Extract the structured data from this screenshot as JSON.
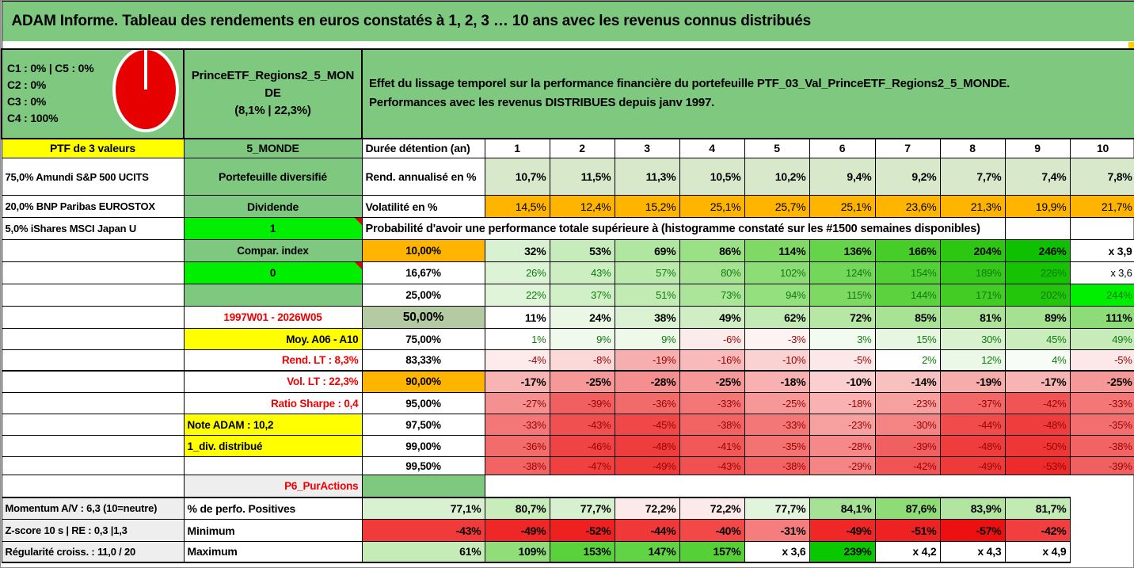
{
  "title": "ADAM Informe. Tableau des rendements en euros constatés à 1, 2, 3 … 10 ans avec les revenus connus distribués",
  "palette": {
    "header_green": "#7fc87f",
    "cell_green": "#7fc87f",
    "bright_green": "#00ef00",
    "orange": "#ffb400",
    "yellow": "#ffff00",
    "gray_label": "#eeeeee",
    "muted_green": "#b4caa2",
    "rend_green": "#d7e9ca",
    "label_red": "#f00000",
    "positive_text": "#0e7a0e",
    "negative_text": "#9b0000",
    "pie_red": "#e60000",
    "strip_nub": "#ffcc00"
  },
  "header": {
    "allocations": [
      "C1 : 0% | C5 : 0%",
      "C2 : 0%",
      "C3 : 0%",
      "C4 : 100%"
    ],
    "pie_icon": "allocation-pie-100pct-red",
    "portfolio_name": "PrinceETF_Regions2_5_MONDE",
    "portfolio_stats": "(8,1% | 22,3%)",
    "description_line1": "Effet du lissage temporel sur la performance financière du portefeuille PTF_03_Val_PrinceETF_Regions2_5_MONDE.",
    "description_line2": "Performances avec les revenus DISTRIBUES depuis janv 1997."
  },
  "years_row": {
    "a": "PTF de 3 valeurs",
    "b": "5_MONDE",
    "c": "Durée détention (an)",
    "years": [
      "1",
      "2",
      "3",
      "4",
      "5",
      "6",
      "7",
      "8",
      "9",
      "10"
    ]
  },
  "rend_row": {
    "a": "75,0% Amundi S&P 500 UCITS",
    "b": "Portefeuille diversifié",
    "c": "Rend. annualisé en %",
    "bg": "#d7e9ca",
    "values": [
      "10,7%",
      "11,5%",
      "11,3%",
      "10,5%",
      "10,2%",
      "9,4%",
      "9,2%",
      "7,7%",
      "7,4%",
      "7,8%"
    ]
  },
  "vol_row": {
    "a": "20,0% BNP Paribas EUROSTOX",
    "b": "Dividende",
    "c": "Volatilité en %",
    "bg": "#ffb400",
    "values": [
      "14,5%",
      "12,4%",
      "15,2%",
      "25,1%",
      "25,7%",
      "25,1%",
      "23,6%",
      "21,3%",
      "19,9%",
      "21,7%"
    ]
  },
  "prob_header_row": {
    "a": "5,0% iShares MSCI Japan U",
    "b": "1",
    "b_bg": "#00ef00",
    "text": "Probabilité d'avoir une performance totale supérieure à (histogramme constaté sur les #1500 semaines disponibles)"
  },
  "prob_rows": [
    {
      "b": {
        "t": "Compar. index",
        "bg": "#7fc87f",
        "align": "c"
      },
      "c": {
        "t": "10,00%",
        "bg": "#ffb400"
      },
      "bold": true,
      "sep": false,
      "cells": [
        {
          "t": "32%",
          "bg": "#d8f1d0"
        },
        {
          "t": "53%",
          "bg": "#c5ecba"
        },
        {
          "t": "69%",
          "bg": "#b0e7a0"
        },
        {
          "t": "86%",
          "bg": "#9ae186"
        },
        {
          "t": "114%",
          "bg": "#7eda65"
        },
        {
          "t": "136%",
          "bg": "#65d449"
        },
        {
          "t": "166%",
          "bg": "#47cd28"
        },
        {
          "t": "204%",
          "bg": "#2cc711"
        },
        {
          "t": "246%",
          "bg": "#0ec100"
        },
        {
          "t": "x 3,9",
          "bg": "#ffffff"
        }
      ]
    },
    {
      "b": {
        "t": "0",
        "bg": "#00ef00",
        "align": "c",
        "bold": true,
        "triangle": true
      },
      "c": {
        "t": "16,67%",
        "bg": "#ffffff"
      },
      "bold": false,
      "sep": false,
      "cells": [
        {
          "t": "26%",
          "bg": "#ddf3d6",
          "c": "pos"
        },
        {
          "t": "43%",
          "bg": "#cdeec1",
          "c": "pos"
        },
        {
          "t": "57%",
          "bg": "#bce9ac",
          "c": "pos"
        },
        {
          "t": "80%",
          "bg": "#a5e392",
          "c": "pos"
        },
        {
          "t": "102%",
          "bg": "#8cdd75",
          "c": "pos"
        },
        {
          "t": "124%",
          "bg": "#73d75a",
          "c": "pos"
        },
        {
          "t": "154%",
          "bg": "#54d037",
          "c": "pos"
        },
        {
          "t": "189%",
          "bg": "#35ca19",
          "c": "pos"
        },
        {
          "t": "226%",
          "bg": "#15c302",
          "c": "pos"
        },
        {
          "t": "x 3,6",
          "bg": "#ffffff"
        }
      ]
    },
    {
      "b": {
        "t": "",
        "bg": "#7fc87f",
        "align": "c"
      },
      "c": {
        "t": "25,00%",
        "bg": "#ffffff"
      },
      "bold": false,
      "sep": false,
      "cells": [
        {
          "t": "22%",
          "bg": "#e0f4da",
          "c": "pos"
        },
        {
          "t": "37%",
          "bg": "#d2f0c8",
          "c": "pos"
        },
        {
          "t": "51%",
          "bg": "#c2ebb4",
          "c": "pos"
        },
        {
          "t": "73%",
          "bg": "#abe59a",
          "c": "pos"
        },
        {
          "t": "94%",
          "bg": "#95e07e",
          "c": "pos"
        },
        {
          "t": "115%",
          "bg": "#7dd962",
          "c": "pos"
        },
        {
          "t": "144%",
          "bg": "#5dd23f",
          "c": "pos"
        },
        {
          "t": "171%",
          "bg": "#42cc24",
          "c": "pos"
        },
        {
          "t": "202%",
          "bg": "#24c60b",
          "c": "pos"
        },
        {
          "t": "244%",
          "bg": "#00ef00",
          "c": "pos"
        }
      ]
    },
    {
      "b": {
        "t": "1997W01 - 2026W05",
        "bg": "#ffffff",
        "align": "c",
        "red": true
      },
      "c": {
        "t": "50,00%",
        "bg": "#b4caa2",
        "big": true
      },
      "bold": true,
      "sep": false,
      "cells": [
        {
          "t": "11%",
          "bg": "#ffffff"
        },
        {
          "t": "24%",
          "bg": "#e9f7e4"
        },
        {
          "t": "38%",
          "bg": "#daf2d1"
        },
        {
          "t": "49%",
          "bg": "#cfeec3"
        },
        {
          "t": "62%",
          "bg": "#c1ebb2"
        },
        {
          "t": "72%",
          "bg": "#b6e7a5"
        },
        {
          "t": "85%",
          "bg": "#a8e295"
        },
        {
          "t": "81%",
          "bg": "#ace399"
        },
        {
          "t": "89%",
          "bg": "#a4e190"
        },
        {
          "t": "111%",
          "bg": "#8edc77"
        }
      ]
    },
    {
      "b": {
        "t": "Moy. A06 - A10",
        "bg": "#ffff00",
        "align": "r"
      },
      "c": {
        "t": "75,00%",
        "bg": "#ffffff"
      },
      "bold": false,
      "sep": false,
      "cells": [
        {
          "t": "1%",
          "bg": "#ffffff",
          "c": "pos"
        },
        {
          "t": "9%",
          "bg": "#eff9ec",
          "c": "pos"
        },
        {
          "t": "9%",
          "bg": "#eef9ea",
          "c": "pos"
        },
        {
          "t": "-6%",
          "bg": "#fcebeb",
          "c": "neg"
        },
        {
          "t": "-3%",
          "bg": "#fdf3f3",
          "c": "neg"
        },
        {
          "t": "3%",
          "bg": "#f2fbef",
          "c": "pos"
        },
        {
          "t": "15%",
          "bg": "#e7f6e1",
          "c": "pos"
        },
        {
          "t": "30%",
          "bg": "#d9f1cf",
          "c": "pos"
        },
        {
          "t": "45%",
          "bg": "#cbedbd",
          "c": "pos"
        },
        {
          "t": "49%",
          "bg": "#c7ecb9",
          "c": "pos"
        }
      ]
    },
    {
      "b": {
        "t": "Rend. LT : 8,3%",
        "bg": "#ffffff",
        "align": "r",
        "red": true
      },
      "c": {
        "t": "83,33%",
        "bg": "#ffffff"
      },
      "bold": false,
      "sep": false,
      "cells": [
        {
          "t": "-4%",
          "bg": "#fdebeb",
          "c": "neg"
        },
        {
          "t": "-8%",
          "bg": "#fbd9d9",
          "c": "neg"
        },
        {
          "t": "-19%",
          "bg": "#f7aeae",
          "c": "neg"
        },
        {
          "t": "-16%",
          "bg": "#f8baba",
          "c": "neg"
        },
        {
          "t": "-10%",
          "bg": "#fad2d2",
          "c": "neg"
        },
        {
          "t": "-5%",
          "bg": "#fce8e8",
          "c": "neg"
        },
        {
          "t": "2%",
          "bg": "#fdfefd",
          "c": "pos"
        },
        {
          "t": "12%",
          "bg": "#ebf8e7",
          "c": "pos"
        },
        {
          "t": "4%",
          "bg": "#f7fcf6",
          "c": "pos"
        },
        {
          "t": "-5%",
          "bg": "#fce8e8",
          "c": "neg"
        }
      ]
    },
    {
      "b": {
        "t": "Vol. LT : 22,3%",
        "bg": "#ffffff",
        "align": "r",
        "red": true
      },
      "c": {
        "t": "90,00%",
        "bg": "#ffb400"
      },
      "bold": true,
      "sep": true,
      "cells": [
        {
          "t": "-17%",
          "bg": "#f8b3b3"
        },
        {
          "t": "-25%",
          "bg": "#f69898"
        },
        {
          "t": "-28%",
          "bg": "#f58e8e"
        },
        {
          "t": "-25%",
          "bg": "#f69898"
        },
        {
          "t": "-18%",
          "bg": "#f8b0b0"
        },
        {
          "t": "-10%",
          "bg": "#fbcfcf"
        },
        {
          "t": "-14%",
          "bg": "#f9c0c0"
        },
        {
          "t": "-19%",
          "bg": "#f7acac"
        },
        {
          "t": "-17%",
          "bg": "#f8b3b3"
        },
        {
          "t": "-25%",
          "bg": "#f69898"
        }
      ]
    },
    {
      "b": {
        "t": "Ratio Sharpe : 0,4",
        "bg": "#ffffff",
        "align": "r",
        "red": true
      },
      "c": {
        "t": "95,00%",
        "bg": "#ffffff"
      },
      "bold": false,
      "sep": false,
      "cells": [
        {
          "t": "-27%",
          "bg": "#f59090",
          "c": "neg"
        },
        {
          "t": "-39%",
          "bg": "#f16060",
          "c": "neg"
        },
        {
          "t": "-36%",
          "bg": "#f26b6b",
          "c": "neg"
        },
        {
          "t": "-33%",
          "bg": "#f37777",
          "c": "neg"
        },
        {
          "t": "-25%",
          "bg": "#f69898",
          "c": "neg"
        },
        {
          "t": "-18%",
          "bg": "#f9b1b1",
          "c": "neg"
        },
        {
          "t": "-23%",
          "bg": "#f7a0a0",
          "c": "neg"
        },
        {
          "t": "-37%",
          "bg": "#f26767",
          "c": "neg"
        },
        {
          "t": "-42%",
          "bg": "#f05454",
          "c": "neg"
        },
        {
          "t": "-33%",
          "bg": "#f37777",
          "c": "neg"
        }
      ]
    },
    {
      "b": {
        "t": "Note ADAM : 10,2",
        "bg": "#ffff00",
        "align": "l"
      },
      "c": {
        "t": "97,50%",
        "bg": "#ffffff"
      },
      "bold": false,
      "sep": false,
      "cells": [
        {
          "t": "-33%",
          "bg": "#f37777",
          "c": "neg"
        },
        {
          "t": "-43%",
          "bg": "#f05050",
          "c": "neg"
        },
        {
          "t": "-45%",
          "bg": "#f04848",
          "c": "neg"
        },
        {
          "t": "-38%",
          "bg": "#f26464",
          "c": "neg"
        },
        {
          "t": "-33%",
          "bg": "#f37777",
          "c": "neg"
        },
        {
          "t": "-23%",
          "bg": "#f7a0a0",
          "c": "neg"
        },
        {
          "t": "-30%",
          "bg": "#f48484",
          "c": "neg"
        },
        {
          "t": "-44%",
          "bg": "#f04c4c",
          "c": "neg"
        },
        {
          "t": "-48%",
          "bg": "#ef3d3d",
          "c": "neg"
        },
        {
          "t": "-35%",
          "bg": "#f36f6f",
          "c": "neg"
        }
      ]
    },
    {
      "b": {
        "t": "1_div. distribué",
        "bg": "#ffff00",
        "align": "l"
      },
      "c": {
        "t": "99,00%",
        "bg": "#ffffff"
      },
      "bold": false,
      "sep": false,
      "cells": [
        {
          "t": "-36%",
          "bg": "#f26c6c",
          "c": "neg"
        },
        {
          "t": "-46%",
          "bg": "#f04444",
          "c": "neg"
        },
        {
          "t": "-48%",
          "bg": "#ef3d3d",
          "c": "neg"
        },
        {
          "t": "-41%",
          "bg": "#f15858",
          "c": "neg"
        },
        {
          "t": "-35%",
          "bg": "#f37272",
          "c": "neg"
        },
        {
          "t": "-28%",
          "bg": "#f58888",
          "c": "neg"
        },
        {
          "t": "-39%",
          "bg": "#f16060",
          "c": "neg"
        },
        {
          "t": "-48%",
          "bg": "#ef3d3d",
          "c": "neg"
        },
        {
          "t": "-50%",
          "bg": "#ee3636",
          "c": "neg"
        },
        {
          "t": "-38%",
          "bg": "#f26464",
          "c": "neg"
        }
      ]
    },
    {
      "b": {
        "t": "",
        "bg": "#ffffff",
        "align": "c"
      },
      "c": {
        "t": "99,50%",
        "bg": "#ffffff"
      },
      "bold": false,
      "sep": false,
      "cells": [
        {
          "t": "-38%",
          "bg": "#f26464",
          "c": "neg"
        },
        {
          "t": "-47%",
          "bg": "#f04040",
          "c": "neg"
        },
        {
          "t": "-49%",
          "bg": "#ef3a3a",
          "c": "neg"
        },
        {
          "t": "-43%",
          "bg": "#f05050",
          "c": "neg"
        },
        {
          "t": "-38%",
          "bg": "#f26464",
          "c": "neg"
        },
        {
          "t": "-29%",
          "bg": "#f58585",
          "c": "neg"
        },
        {
          "t": "-42%",
          "bg": "#f15454",
          "c": "neg"
        },
        {
          "t": "-49%",
          "bg": "#ef3a3a",
          "c": "neg"
        },
        {
          "t": "-53%",
          "bg": "#ed2b2b",
          "c": "neg"
        },
        {
          "t": "-39%",
          "bg": "#f16060",
          "c": "neg"
        }
      ]
    }
  ],
  "p6_row": {
    "b": "P6_PurActions"
  },
  "stat_rows": [
    {
      "key": "perfo",
      "a": "Momentum A/V : 6,3 (10=neutre)",
      "c": "% de perfo. Positives",
      "sep": true,
      "cells": [
        {
          "t": "77,1%",
          "bg": "#d9f1d0"
        },
        {
          "t": "80,7%",
          "bg": "#c8edbb"
        },
        {
          "t": "77,7%",
          "bg": "#d7f0cd"
        },
        {
          "t": "72,2%",
          "bg": "#fce9e9"
        },
        {
          "t": "72,2%",
          "bg": "#fce9e9"
        },
        {
          "t": "77,7%",
          "bg": "#e3f4dd"
        },
        {
          "t": "84,1%",
          "bg": "#a6e293"
        },
        {
          "t": "87,6%",
          "bg": "#8edc76"
        },
        {
          "t": "83,9%",
          "bg": "#b2e6a0"
        },
        {
          "t": "81,7%",
          "bg": "#c2ebb3"
        }
      ]
    },
    {
      "key": "min",
      "a": "Z-score 10 s | RE : 0,3 |1,3",
      "c": "Minimum",
      "sep": false,
      "cells": [
        {
          "t": "-43%",
          "bg": "#f13b3b"
        },
        {
          "t": "-49%",
          "bg": "#ef2727"
        },
        {
          "t": "-52%",
          "bg": "#ee2020"
        },
        {
          "t": "-44%",
          "bg": "#f13838"
        },
        {
          "t": "-40%",
          "bg": "#f24848"
        },
        {
          "t": "-31%",
          "bg": "#f57d7d"
        },
        {
          "t": "-49%",
          "bg": "#ef2727"
        },
        {
          "t": "-51%",
          "bg": "#ee2222"
        },
        {
          "t": "-57%",
          "bg": "#ed1010"
        },
        {
          "t": "-42%",
          "bg": "#f13e3e"
        }
      ]
    },
    {
      "key": "max",
      "a": "Régularité croiss. : 11,0 / 20",
      "c": "Maximum",
      "sep": false,
      "cells": [
        {
          "t": "61%",
          "bg": "#c5ebb6"
        },
        {
          "t": "109%",
          "bg": "#90dd7a"
        },
        {
          "t": "153%",
          "bg": "#5ad23c"
        },
        {
          "t": "147%",
          "bg": "#61d445"
        },
        {
          "t": "157%",
          "bg": "#55d137"
        },
        {
          "t": "x 3,6",
          "bg": "#ffffff"
        },
        {
          "t": "239%",
          "bg": "#0ac800"
        },
        {
          "t": "x 4,2",
          "bg": "#ffffff"
        },
        {
          "t": "x 4,3",
          "bg": "#ffffff"
        },
        {
          "t": "x 4,9",
          "bg": "#ffffff"
        }
      ]
    }
  ]
}
